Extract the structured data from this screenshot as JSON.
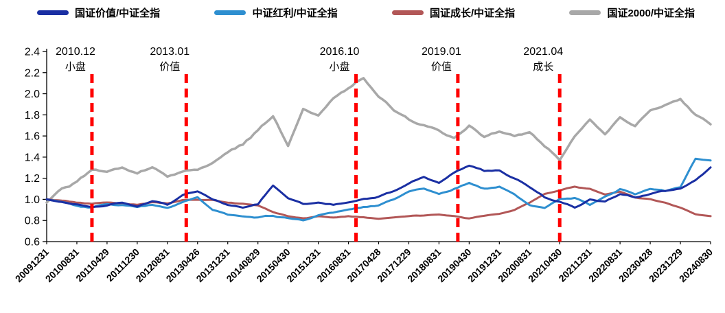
{
  "chart_data": {
    "type": "line",
    "title": "",
    "xlabel": "",
    "ylabel": "",
    "grid": false,
    "legend_position": "top",
    "ylim": [
      0.6,
      2.4
    ],
    "yticks": [
      "0.6",
      "0.8",
      "1.0",
      "1.2",
      "1.4",
      "1.6",
      "1.8",
      "2.0",
      "2.2",
      "2.4"
    ],
    "x_month_span": 176,
    "x_tick_labels": [
      "20091231",
      "20100831",
      "20110429",
      "20111230",
      "20120831",
      "20130426",
      "20131231",
      "20140829",
      "20150430",
      "20151231",
      "20160831",
      "20170428",
      "20171229",
      "20180831",
      "20190430",
      "20191231",
      "20200831",
      "20210430",
      "20211231",
      "20220831",
      "20230428",
      "20231229",
      "20240830"
    ],
    "key_months": [
      0,
      4,
      8,
      12,
      16,
      20,
      24,
      28,
      32,
      36,
      40,
      44,
      48,
      52,
      56,
      60,
      64,
      68,
      72,
      76,
      80,
      84,
      88,
      92,
      96,
      100,
      104,
      108,
      112,
      116,
      120,
      124,
      128,
      132,
      136,
      140,
      144,
      148,
      152,
      156,
      160,
      164,
      168,
      172,
      176
    ],
    "series": [
      {
        "id": "gz-value",
        "name": "国证价值/中证全指",
        "color": "#1A2FA3",
        "width": 3,
        "values": [
          1.0,
          0.97,
          0.95,
          0.92,
          0.95,
          0.97,
          0.93,
          0.98,
          0.95,
          1.04,
          1.08,
          1.0,
          0.95,
          0.92,
          0.95,
          1.14,
          1.02,
          0.95,
          0.97,
          0.95,
          0.97,
          1.0,
          1.02,
          1.08,
          1.15,
          1.22,
          1.15,
          1.25,
          1.32,
          1.27,
          1.27,
          1.2,
          1.12,
          1.02,
          0.98,
          0.92,
          1.0,
          0.98,
          1.05,
          1.02,
          1.05,
          1.08,
          1.1,
          1.18,
          1.3
        ]
      },
      {
        "id": "zz-dividend",
        "name": "中证红利/中证全指",
        "color": "#2E8FD0",
        "width": 3,
        "values": [
          1.0,
          0.97,
          0.94,
          0.92,
          0.96,
          0.95,
          0.92,
          0.95,
          0.92,
          0.97,
          1.02,
          0.9,
          0.86,
          0.84,
          0.83,
          0.85,
          0.82,
          0.8,
          0.85,
          0.87,
          0.9,
          0.93,
          0.95,
          1.0,
          1.08,
          1.1,
          1.05,
          1.1,
          1.15,
          1.1,
          1.12,
          1.05,
          0.95,
          0.92,
          1.0,
          1.02,
          0.95,
          1.02,
          1.1,
          1.05,
          1.1,
          1.08,
          1.12,
          1.38,
          1.37
        ]
      },
      {
        "id": "gz-growth",
        "name": "国证成长/中证全指",
        "color": "#B25757",
        "width": 3,
        "values": [
          1.0,
          0.99,
          0.97,
          0.96,
          0.97,
          0.96,
          0.95,
          0.97,
          0.96,
          0.99,
          1.0,
          0.99,
          0.97,
          0.96,
          0.94,
          0.88,
          0.84,
          0.82,
          0.84,
          0.83,
          0.84,
          0.83,
          0.82,
          0.83,
          0.84,
          0.85,
          0.86,
          0.84,
          0.82,
          0.84,
          0.86,
          0.9,
          0.97,
          1.05,
          1.08,
          1.12,
          1.1,
          1.05,
          1.07,
          1.02,
          1.0,
          0.97,
          0.92,
          0.86,
          0.84
        ]
      },
      {
        "id": "gz2000",
        "name": "国证2000/中证全指",
        "color": "#A8A8A8",
        "width": 3.5,
        "values": [
          0.97,
          1.1,
          1.17,
          1.28,
          1.26,
          1.31,
          1.24,
          1.3,
          1.21,
          1.26,
          1.28,
          1.35,
          1.45,
          1.52,
          1.65,
          1.78,
          1.5,
          1.85,
          1.8,
          1.95,
          2.05,
          2.15,
          1.97,
          1.85,
          1.75,
          1.7,
          1.65,
          1.57,
          1.7,
          1.6,
          1.65,
          1.6,
          1.63,
          1.5,
          1.38,
          1.6,
          1.75,
          1.62,
          1.78,
          1.7,
          1.85,
          1.9,
          1.95,
          1.8,
          1.72
        ]
      }
    ],
    "events": [
      {
        "month": 12,
        "date_label": "2010.12",
        "tag": "小盘"
      },
      {
        "month": 37,
        "date_label": "2013.01",
        "tag": "价值"
      },
      {
        "month": 82,
        "date_label": "2016.10",
        "tag": "小盘"
      },
      {
        "month": 109,
        "date_label": "2019.01",
        "tag": "价值"
      },
      {
        "month": 136,
        "date_label": "2021.04",
        "tag": "成长"
      }
    ],
    "event_line_color": "#FF0000",
    "axis_color": "#000000",
    "background_color": "#FFFFFF"
  }
}
